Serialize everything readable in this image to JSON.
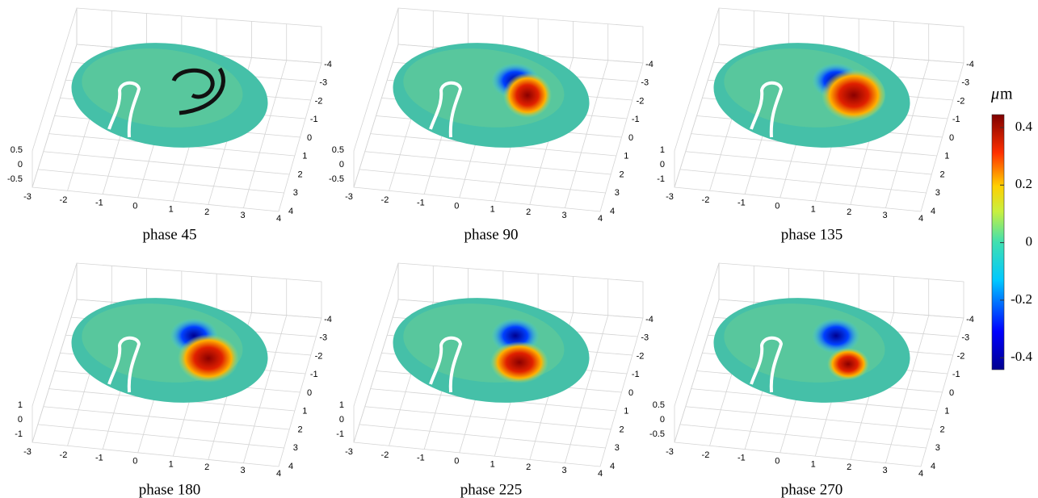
{
  "panels": [
    {
      "caption": "phase 45",
      "z_ticks": [
        "0.5",
        "0",
        "-0.5"
      ]
    },
    {
      "caption": "phase 90",
      "z_ticks": [
        "0.5",
        "0",
        "-0.5"
      ]
    },
    {
      "caption": "phase 135",
      "z_ticks": [
        "1",
        "0",
        "-1"
      ]
    },
    {
      "caption": "phase 180",
      "z_ticks": [
        "1",
        "0",
        "-1"
      ]
    },
    {
      "caption": "phase 225",
      "z_ticks": [
        "1",
        "0",
        "-1"
      ]
    },
    {
      "caption": "phase 270",
      "z_ticks": [
        "0.5",
        "0",
        "-0.5"
      ]
    }
  ],
  "x_ticks": [
    "-3",
    "-2",
    "-1",
    "0",
    "1",
    "2",
    "3",
    "4"
  ],
  "y_ticks": [
    "-4",
    "-3",
    "-2",
    "-1",
    "0",
    "1",
    "2",
    "3",
    "4"
  ],
  "colorbar": {
    "unit_symbol": "μ",
    "unit": "m",
    "ticks": [
      "0.4",
      "0.2",
      "0",
      "-0.2",
      "-0.4"
    ]
  }
}
